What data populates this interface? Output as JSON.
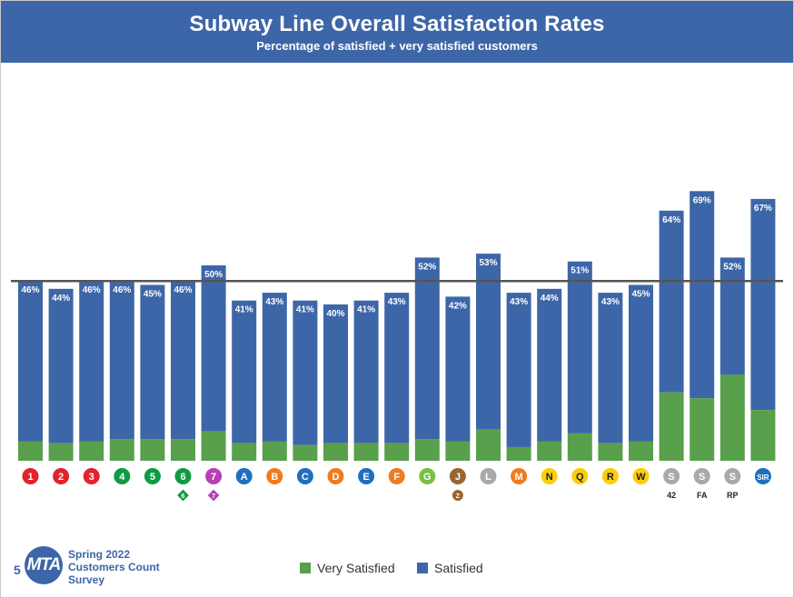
{
  "header": {
    "title": "Subway Line Overall Satisfaction Rates",
    "subtitle": "Percentage of satisfied + very satisfied customers"
  },
  "footer": {
    "page_number": "5",
    "logo_text": "MTA",
    "survey_lines": [
      "Spring 2022",
      "Customers Count",
      "Survey"
    ]
  },
  "legend": {
    "very_satisfied": "Very Satisfied",
    "satisfied": "Satisfied"
  },
  "colors": {
    "header_bg": "#3d66a8",
    "satisfied": "#3d66a8",
    "very_satisfied": "#58a04b",
    "avg_line": "#555555"
  },
  "chart_data": {
    "type": "bar",
    "stacked": true,
    "ylim": [
      0,
      100
    ],
    "average_line_value": 46,
    "categories": [
      {
        "label": "1",
        "color": "#e2232c"
      },
      {
        "label": "2",
        "color": "#e2232c"
      },
      {
        "label": "3",
        "color": "#e2232c"
      },
      {
        "label": "4",
        "color": "#0f9b43"
      },
      {
        "label": "5",
        "color": "#0f9b43"
      },
      {
        "label": "6",
        "color": "#0f9b43",
        "express": "6"
      },
      {
        "label": "7",
        "color": "#b840b5",
        "express": "7"
      },
      {
        "label": "A",
        "color": "#1f6fbf"
      },
      {
        "label": "B",
        "color": "#f07b1f"
      },
      {
        "label": "C",
        "color": "#1f6fbf"
      },
      {
        "label": "D",
        "color": "#f07b1f"
      },
      {
        "label": "E",
        "color": "#1f6fbf"
      },
      {
        "label": "F",
        "color": "#f07b1f"
      },
      {
        "label": "G",
        "color": "#77c043"
      },
      {
        "label": "J",
        "color": "#996633",
        "express": "Z"
      },
      {
        "label": "L",
        "color": "#a7a9ac"
      },
      {
        "label": "M",
        "color": "#f07b1f"
      },
      {
        "label": "N",
        "color": "#fcce0a",
        "text": "#222222"
      },
      {
        "label": "Q",
        "color": "#fcce0a",
        "text": "#222222"
      },
      {
        "label": "R",
        "color": "#fcce0a",
        "text": "#222222"
      },
      {
        "label": "W",
        "color": "#fcce0a",
        "text": "#222222"
      },
      {
        "label": "S",
        "color": "#a7a9ac",
        "sub": "42"
      },
      {
        "label": "S",
        "color": "#a7a9ac",
        "sub": "FA"
      },
      {
        "label": "S",
        "color": "#a7a9ac",
        "sub": "RP"
      },
      {
        "label": "SIR",
        "color": "#1f6fbf"
      }
    ],
    "series": [
      {
        "name": "Very Satisfied",
        "values": [
          5,
          4.5,
          5,
          5.5,
          5.5,
          5.5,
          7.5,
          4.5,
          5,
          4,
          4.5,
          4.5,
          4.5,
          5.5,
          5,
          8,
          3.5,
          5,
          7,
          4.5,
          5,
          17.5,
          16,
          22,
          13
        ]
      },
      {
        "name": "Satisfied",
        "values": [
          41,
          39.5,
          41,
          40.5,
          39.5,
          40.5,
          42.5,
          36.5,
          38,
          37,
          35.5,
          36.5,
          38.5,
          46.5,
          37,
          45,
          39.5,
          39,
          44,
          38.5,
          40,
          46.5,
          53,
          30,
          54
        ]
      }
    ],
    "total_labels": [
      "46%",
      "44%",
      "46%",
      "46%",
      "45%",
      "46%",
      "50%",
      "41%",
      "43%",
      "41%",
      "40%",
      "41%",
      "43%",
      "52%",
      "42%",
      "53%",
      "43%",
      "44%",
      "51%",
      "43%",
      "45%",
      "64%",
      "69%",
      "52%",
      "67%"
    ]
  }
}
